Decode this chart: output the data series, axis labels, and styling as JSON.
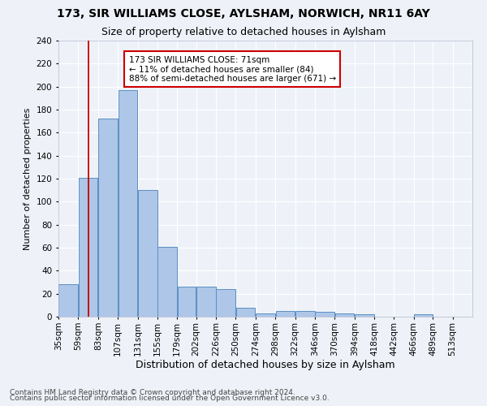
{
  "title1": "173, SIR WILLIAMS CLOSE, AYLSHAM, NORWICH, NR11 6AY",
  "title2": "Size of property relative to detached houses in Aylsham",
  "xlabel": "Distribution of detached houses by size in Aylsham",
  "ylabel": "Number of detached properties",
  "bin_labels": [
    "35sqm",
    "59sqm",
    "83sqm",
    "107sqm",
    "131sqm",
    "155sqm",
    "179sqm",
    "202sqm",
    "226sqm",
    "250sqm",
    "274sqm",
    "298sqm",
    "322sqm",
    "346sqm",
    "370sqm",
    "394sqm",
    "418sqm",
    "442sqm",
    "466sqm",
    "489sqm",
    "513sqm"
  ],
  "bin_edges": [
    35,
    59,
    83,
    107,
    131,
    155,
    179,
    202,
    226,
    250,
    274,
    298,
    322,
    346,
    370,
    394,
    418,
    442,
    466,
    489,
    513,
    537
  ],
  "bar_heights": [
    28,
    121,
    172,
    197,
    110,
    61,
    26,
    26,
    24,
    8,
    3,
    5,
    5,
    4,
    3,
    2,
    0,
    0,
    2,
    0,
    0
  ],
  "bar_color": "#aec6e8",
  "bar_edge_color": "#5a8fc2",
  "vline_x": 71,
  "vline_color": "#cc0000",
  "annotation_line1": "173 SIR WILLIAMS CLOSE: 71sqm",
  "annotation_line2": "← 11% of detached houses are smaller (84)",
  "annotation_line3": "88% of semi-detached houses are larger (671) →",
  "annotation_box_color": "white",
  "annotation_box_edge": "#cc0000",
  "ylim": [
    0,
    240
  ],
  "yticks": [
    0,
    20,
    40,
    60,
    80,
    100,
    120,
    140,
    160,
    180,
    200,
    220,
    240
  ],
  "footer1": "Contains HM Land Registry data © Crown copyright and database right 2024.",
  "footer2": "Contains public sector information licensed under the Open Government Licence v3.0.",
  "bg_color": "#eef2f8",
  "grid_color": "#ffffff",
  "title1_fontsize": 10,
  "title2_fontsize": 9,
  "xlabel_fontsize": 9,
  "ylabel_fontsize": 8,
  "tick_fontsize": 7.5,
  "annot_fontsize": 7.5,
  "footer_fontsize": 6.5
}
